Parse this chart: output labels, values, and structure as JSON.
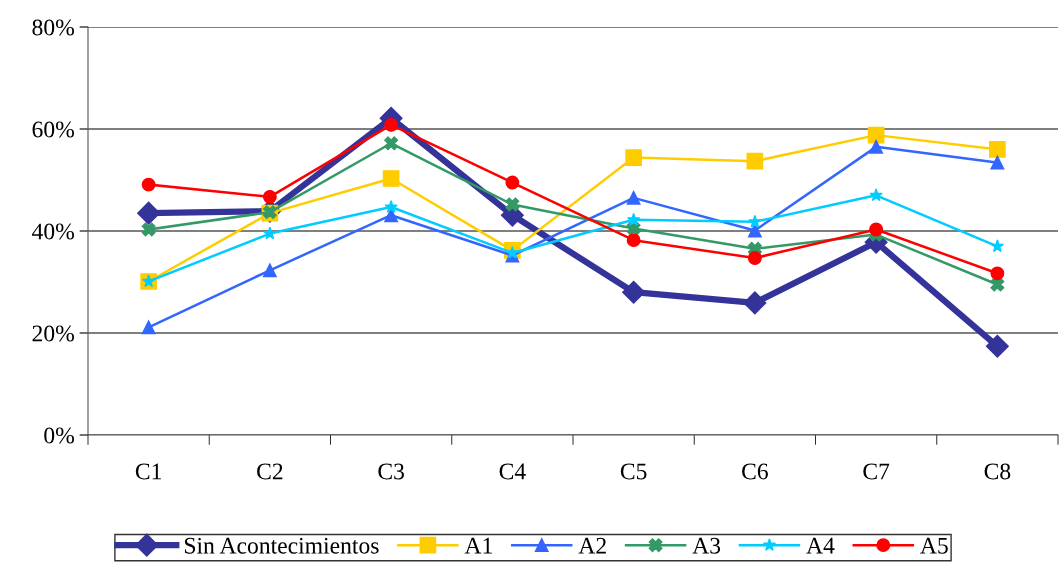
{
  "chart_data": {
    "type": "line",
    "categories": [
      "C1",
      "C2",
      "C3",
      "C4",
      "C5",
      "C6",
      "C7",
      "C8"
    ],
    "series": [
      {
        "name": "Sin Acontecimientos",
        "color": "#333399",
        "marker": "diamond",
        "values": [
          43.5,
          43.9,
          62.1,
          43.1,
          28.0,
          25.9,
          37.8,
          17.4
        ]
      },
      {
        "name": "A1",
        "color": "#ffcc00",
        "marker": "square",
        "values": [
          30.1,
          43.5,
          50.3,
          36.2,
          54.4,
          53.7,
          58.8,
          56.0
        ]
      },
      {
        "name": "A2",
        "color": "#3366ff",
        "marker": "triangle",
        "values": [
          21.1,
          32.3,
          43.1,
          35.2,
          46.5,
          40.1,
          56.5,
          53.4
        ]
      },
      {
        "name": "A3",
        "color": "#339966",
        "marker": "cross",
        "values": [
          40.3,
          43.7,
          57.2,
          45.2,
          40.5,
          36.5,
          39.3,
          29.5
        ]
      },
      {
        "name": "A4",
        "color": "#00ccff",
        "marker": "star",
        "values": [
          30.1,
          39.5,
          44.7,
          35.7,
          42.2,
          41.8,
          47.0,
          37.0
        ]
      },
      {
        "name": "A5",
        "color": "#ff0000",
        "marker": "circle",
        "values": [
          49.1,
          46.7,
          60.8,
          49.5,
          38.2,
          34.7,
          40.3,
          31.7
        ]
      }
    ],
    "ylim": [
      0,
      80
    ],
    "yticks": [
      {
        "value": 0,
        "label": "0%"
      },
      {
        "value": 20,
        "label": "20%"
      },
      {
        "value": 40,
        "label": "40%"
      },
      {
        "value": 60,
        "label": "60%"
      },
      {
        "value": 80,
        "label": "80%"
      }
    ],
    "grid": "y",
    "legend": "bottom",
    "line_style": "solid"
  }
}
